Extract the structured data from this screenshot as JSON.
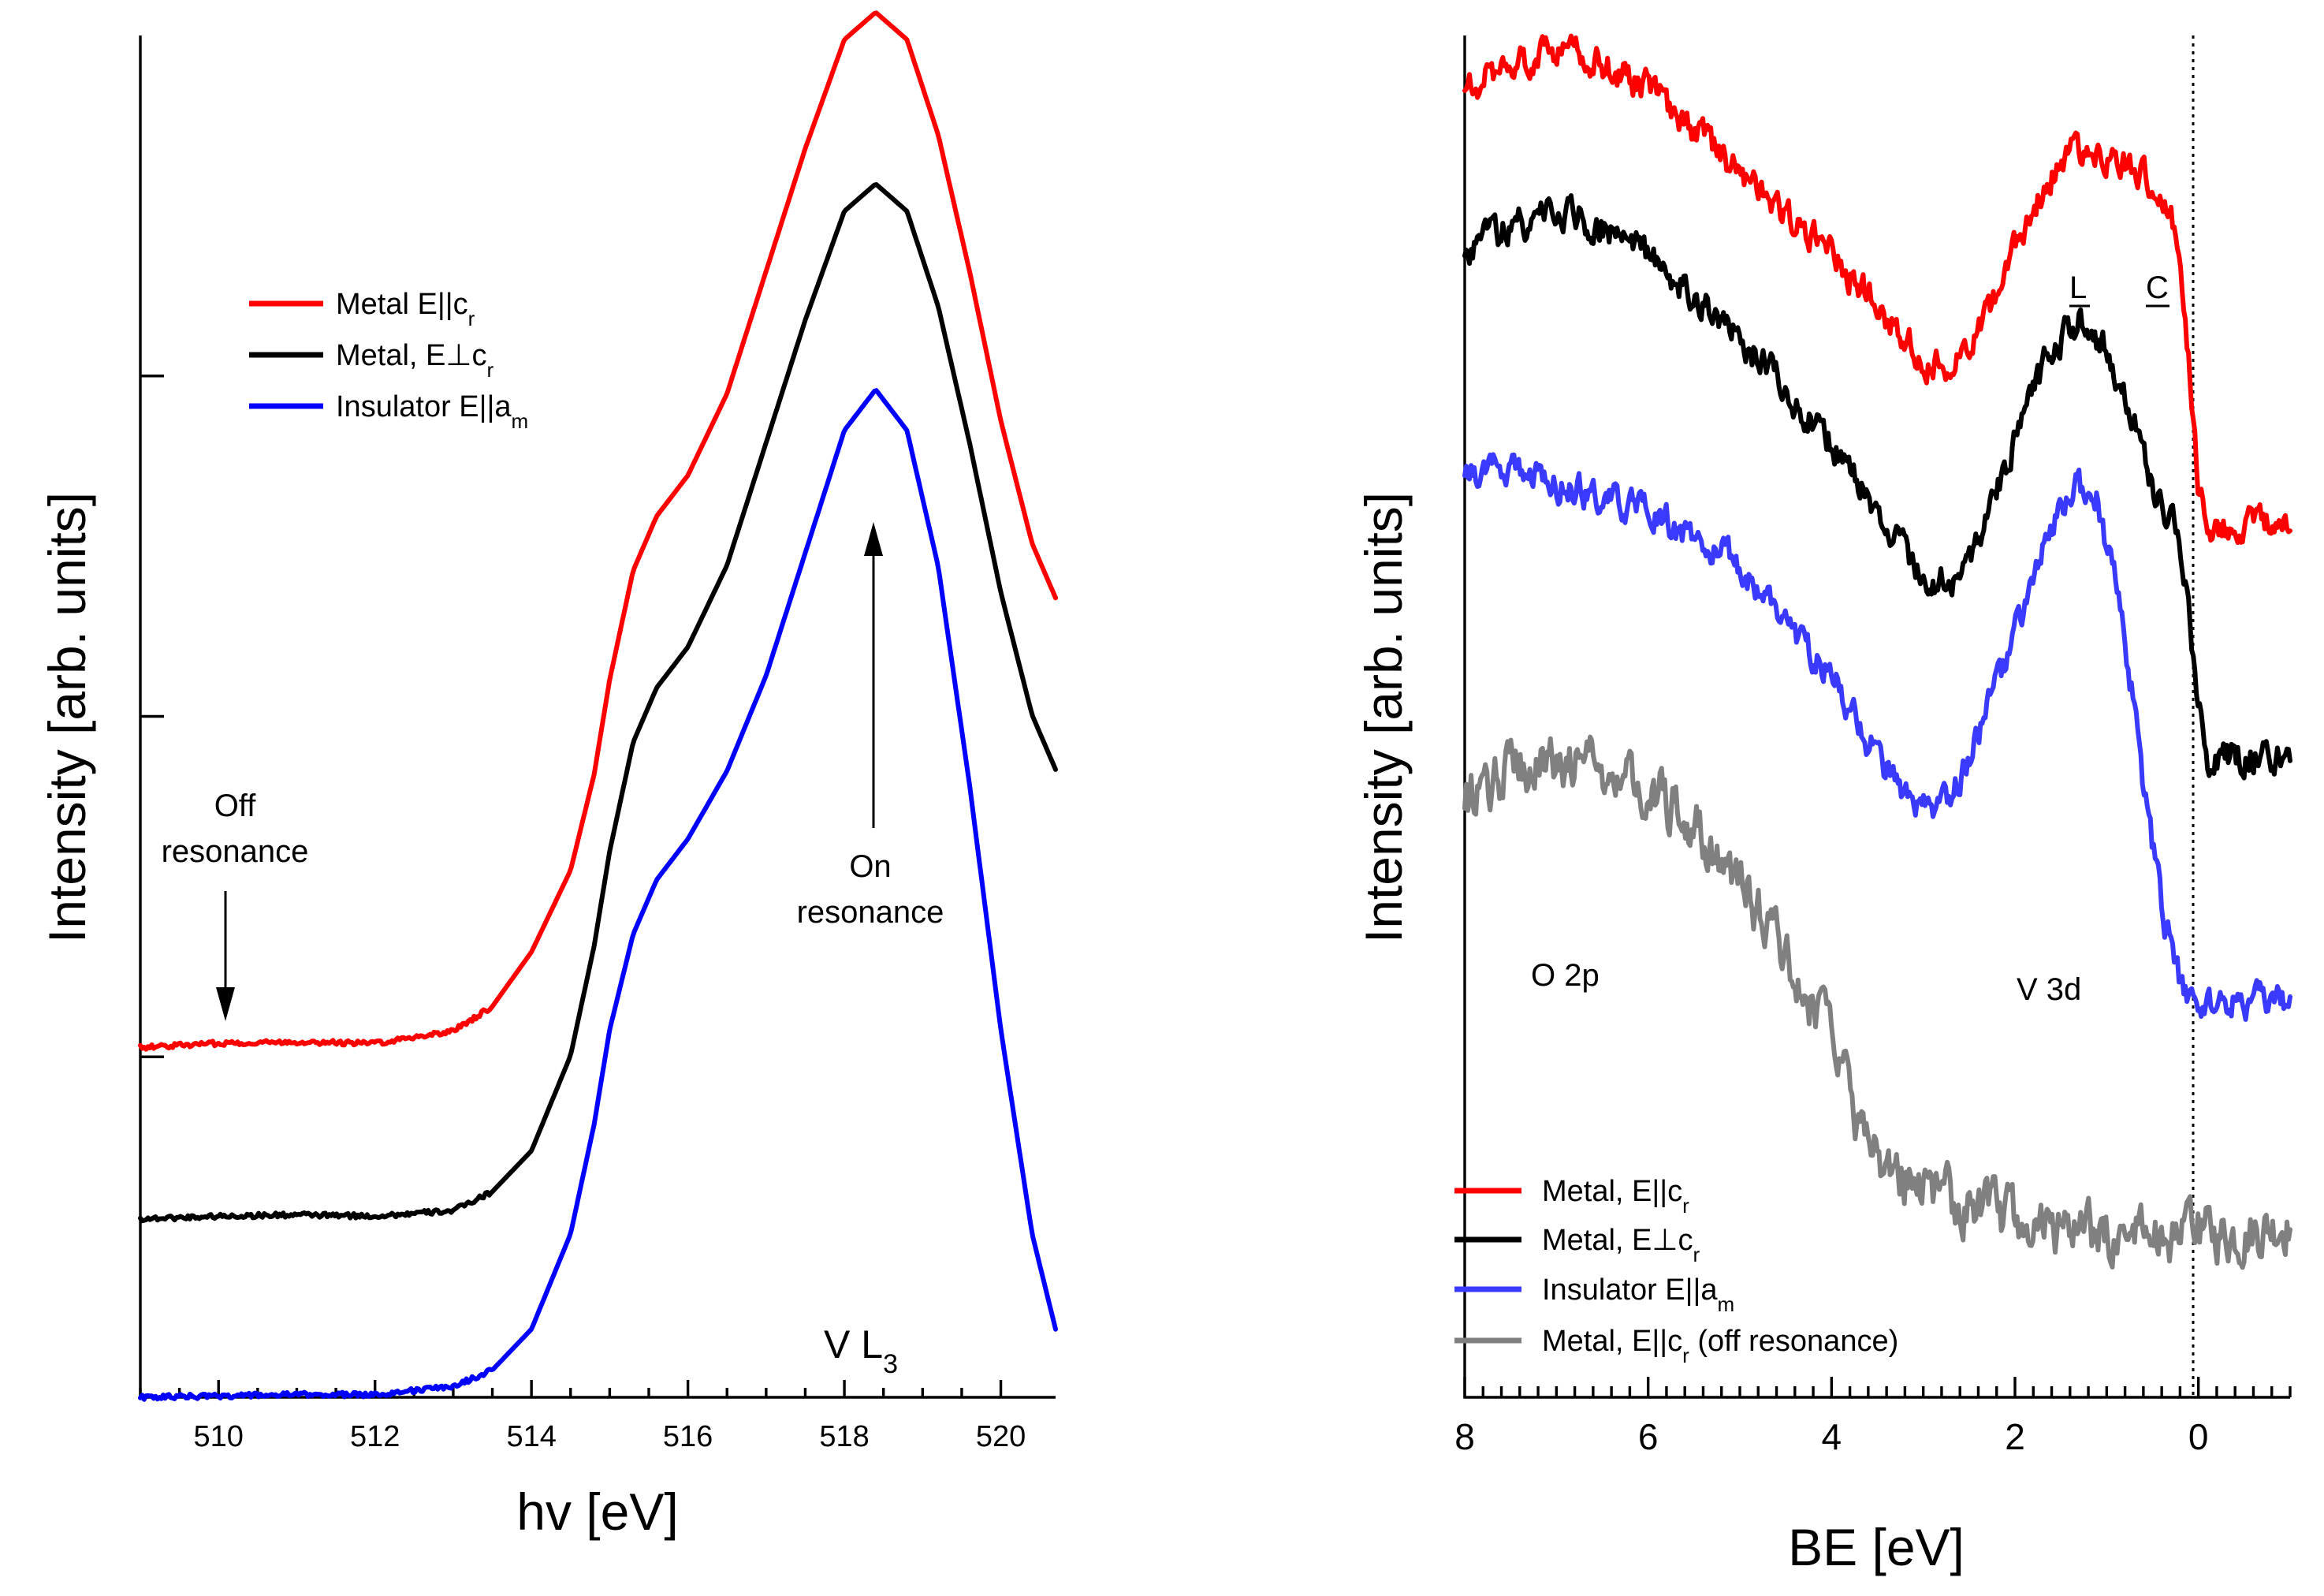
{
  "chart_data": [
    {
      "type": "line",
      "panel": "left",
      "xlabel": "hv [eV]",
      "ylabel": "Intensity [arb. units]",
      "xlim": [
        509,
        520.7
      ],
      "ylim": [
        0,
        1
      ],
      "xticks": [
        "510",
        "512",
        "514",
        "516",
        "518",
        "520"
      ],
      "annotations": {
        "off_line1": "Off",
        "off_line2": "resonance",
        "on_line1": "On",
        "on_line2": "resonance",
        "edge_main": "V L",
        "edge_sub": "3"
      },
      "series": [
        {
          "name": "Metal E||cr",
          "label_main": "Metal E||c",
          "label_sub": "r",
          "color": "#ff0000",
          "offset": 0.257,
          "peak": 0.7,
          "x": [
            509.0,
            510.0,
            511.0,
            512.0,
            513.0,
            513.5,
            514.0,
            514.5,
            514.8,
            515.0,
            515.3,
            515.6,
            516.0,
            516.5,
            517.0,
            517.5,
            518.0,
            518.4,
            518.8,
            519.2,
            519.6,
            520.0,
            520.4,
            520.7
          ],
          "y": [
            0.0,
            0.003,
            0.004,
            0.003,
            0.012,
            0.03,
            0.07,
            0.13,
            0.2,
            0.27,
            0.35,
            0.39,
            0.42,
            0.48,
            0.57,
            0.66,
            0.74,
            0.76,
            0.74,
            0.67,
            0.57,
            0.46,
            0.37,
            0.33
          ]
        },
        {
          "name": "Metal, E⊥cr",
          "label_main": "Metal, E⊥c",
          "label_sub": "r",
          "color": "#000000",
          "offset": 0.131,
          "peak": 0.72,
          "x": [
            509.0,
            510.0,
            511.0,
            512.0,
            513.0,
            513.5,
            514.0,
            514.5,
            514.8,
            515.0,
            515.3,
            515.6,
            516.0,
            516.5,
            517.0,
            517.5,
            518.0,
            518.4,
            518.8,
            519.2,
            519.6,
            520.0,
            520.4,
            520.7
          ],
          "y": [
            0.0,
            0.002,
            0.003,
            0.002,
            0.006,
            0.02,
            0.05,
            0.12,
            0.2,
            0.27,
            0.35,
            0.39,
            0.42,
            0.48,
            0.57,
            0.66,
            0.74,
            0.76,
            0.74,
            0.67,
            0.57,
            0.46,
            0.37,
            0.33
          ]
        },
        {
          "name": "Insulator E||am",
          "label_main": "Insulator E||a",
          "label_sub": "m",
          "color": "#0000ff",
          "offset": 0.0,
          "peak": 0.72,
          "x": [
            509.0,
            510.0,
            511.0,
            512.0,
            513.0,
            513.5,
            514.0,
            514.5,
            514.8,
            515.0,
            515.3,
            515.6,
            516.0,
            516.5,
            517.0,
            517.5,
            518.0,
            518.4,
            518.8,
            519.2,
            519.6,
            520.0,
            520.4,
            520.7
          ],
          "y": [
            0.0,
            0.001,
            0.002,
            0.002,
            0.008,
            0.02,
            0.05,
            0.12,
            0.2,
            0.27,
            0.34,
            0.38,
            0.41,
            0.46,
            0.53,
            0.62,
            0.71,
            0.74,
            0.71,
            0.61,
            0.45,
            0.27,
            0.12,
            0.05
          ]
        }
      ]
    },
    {
      "type": "line",
      "panel": "right",
      "xlabel": "BE [eV]",
      "ylabel": "Intensity [arb. units]",
      "xlim": [
        8,
        -1
      ],
      "ylim": [
        0,
        1
      ],
      "xticks": [
        "8",
        "6",
        "4",
        "2",
        "0"
      ],
      "fermi_level": 0,
      "annotations": {
        "o2p": "O 2p",
        "v3d": "V 3d",
        "L": "L",
        "C": "C"
      },
      "series": [
        {
          "name": "Metal, E||cr",
          "label_main": "Metal, E||c",
          "label_sub": "r",
          "label_suffix": "",
          "color": "#ff0000",
          "noise": 0.012,
          "x": [
            8.0,
            7.5,
            7.0,
            6.5,
            6.0,
            5.5,
            5.0,
            4.5,
            4.0,
            3.5,
            3.0,
            2.6,
            2.2,
            1.8,
            1.5,
            1.2,
            0.9,
            0.6,
            0.35,
            0.2,
            0.1,
            0.0,
            -0.1,
            -1.0
          ],
          "y": [
            0.96,
            0.98,
            0.99,
            0.98,
            0.96,
            0.93,
            0.9,
            0.87,
            0.84,
            0.8,
            0.76,
            0.76,
            0.81,
            0.87,
            0.91,
            0.92,
            0.91,
            0.9,
            0.88,
            0.84,
            0.76,
            0.67,
            0.64,
            0.64
          ]
        },
        {
          "name": "Metal, E⊥cr",
          "label_main": "Metal, E⊥c",
          "label_sub": "r",
          "label_suffix": "",
          "color": "#000000",
          "noise": 0.012,
          "x": [
            8.0,
            7.5,
            7.0,
            6.5,
            6.0,
            5.5,
            5.0,
            4.5,
            4.0,
            3.5,
            3.0,
            2.7,
            2.4,
            2.0,
            1.6,
            1.3,
            1.0,
            0.7,
            0.45,
            0.25,
            0.12,
            0.03,
            -0.1,
            -1.0
          ],
          "y": [
            0.84,
            0.86,
            0.87,
            0.86,
            0.84,
            0.81,
            0.78,
            0.74,
            0.7,
            0.65,
            0.6,
            0.6,
            0.63,
            0.7,
            0.77,
            0.79,
            0.77,
            0.72,
            0.66,
            0.64,
            0.6,
            0.52,
            0.47,
            0.47
          ]
        },
        {
          "name": "Insulator E||am",
          "label_main": "Insulator  E||a",
          "label_sub": "m",
          "label_suffix": "",
          "color": "#3a3aff",
          "noise": 0.012,
          "x": [
            8.0,
            7.5,
            7.0,
            6.5,
            6.0,
            5.5,
            5.0,
            4.5,
            4.0,
            3.5,
            3.1,
            2.8,
            2.5,
            2.1,
            1.7,
            1.35,
            1.1,
            0.8,
            0.6,
            0.4,
            0.2,
            0.05,
            -0.1,
            -1.0
          ],
          "y": [
            0.68,
            0.68,
            0.67,
            0.66,
            0.65,
            0.63,
            0.61,
            0.57,
            0.53,
            0.47,
            0.43,
            0.43,
            0.47,
            0.54,
            0.62,
            0.67,
            0.66,
            0.56,
            0.45,
            0.36,
            0.3,
            0.29,
            0.29,
            0.29
          ]
        },
        {
          "name": "Metal, E||cr (off resonance)",
          "label_main": "Metal, E||c",
          "label_sub": "r",
          "label_suffix": " (off resonance)",
          "color": "#808080",
          "noise": 0.02,
          "x": [
            8.0,
            7.5,
            7.0,
            6.5,
            6.0,
            5.5,
            5.0,
            4.5,
            4.0,
            3.7,
            3.4,
            3.0,
            2.5,
            2.0,
            1.5,
            1.0,
            0.5,
            0.0,
            -0.5,
            -1.0
          ],
          "y": [
            0.44,
            0.46,
            0.47,
            0.46,
            0.45,
            0.42,
            0.38,
            0.32,
            0.26,
            0.2,
            0.17,
            0.15,
            0.14,
            0.13,
            0.12,
            0.12,
            0.12,
            0.12,
            0.12,
            0.13
          ]
        }
      ]
    }
  ]
}
